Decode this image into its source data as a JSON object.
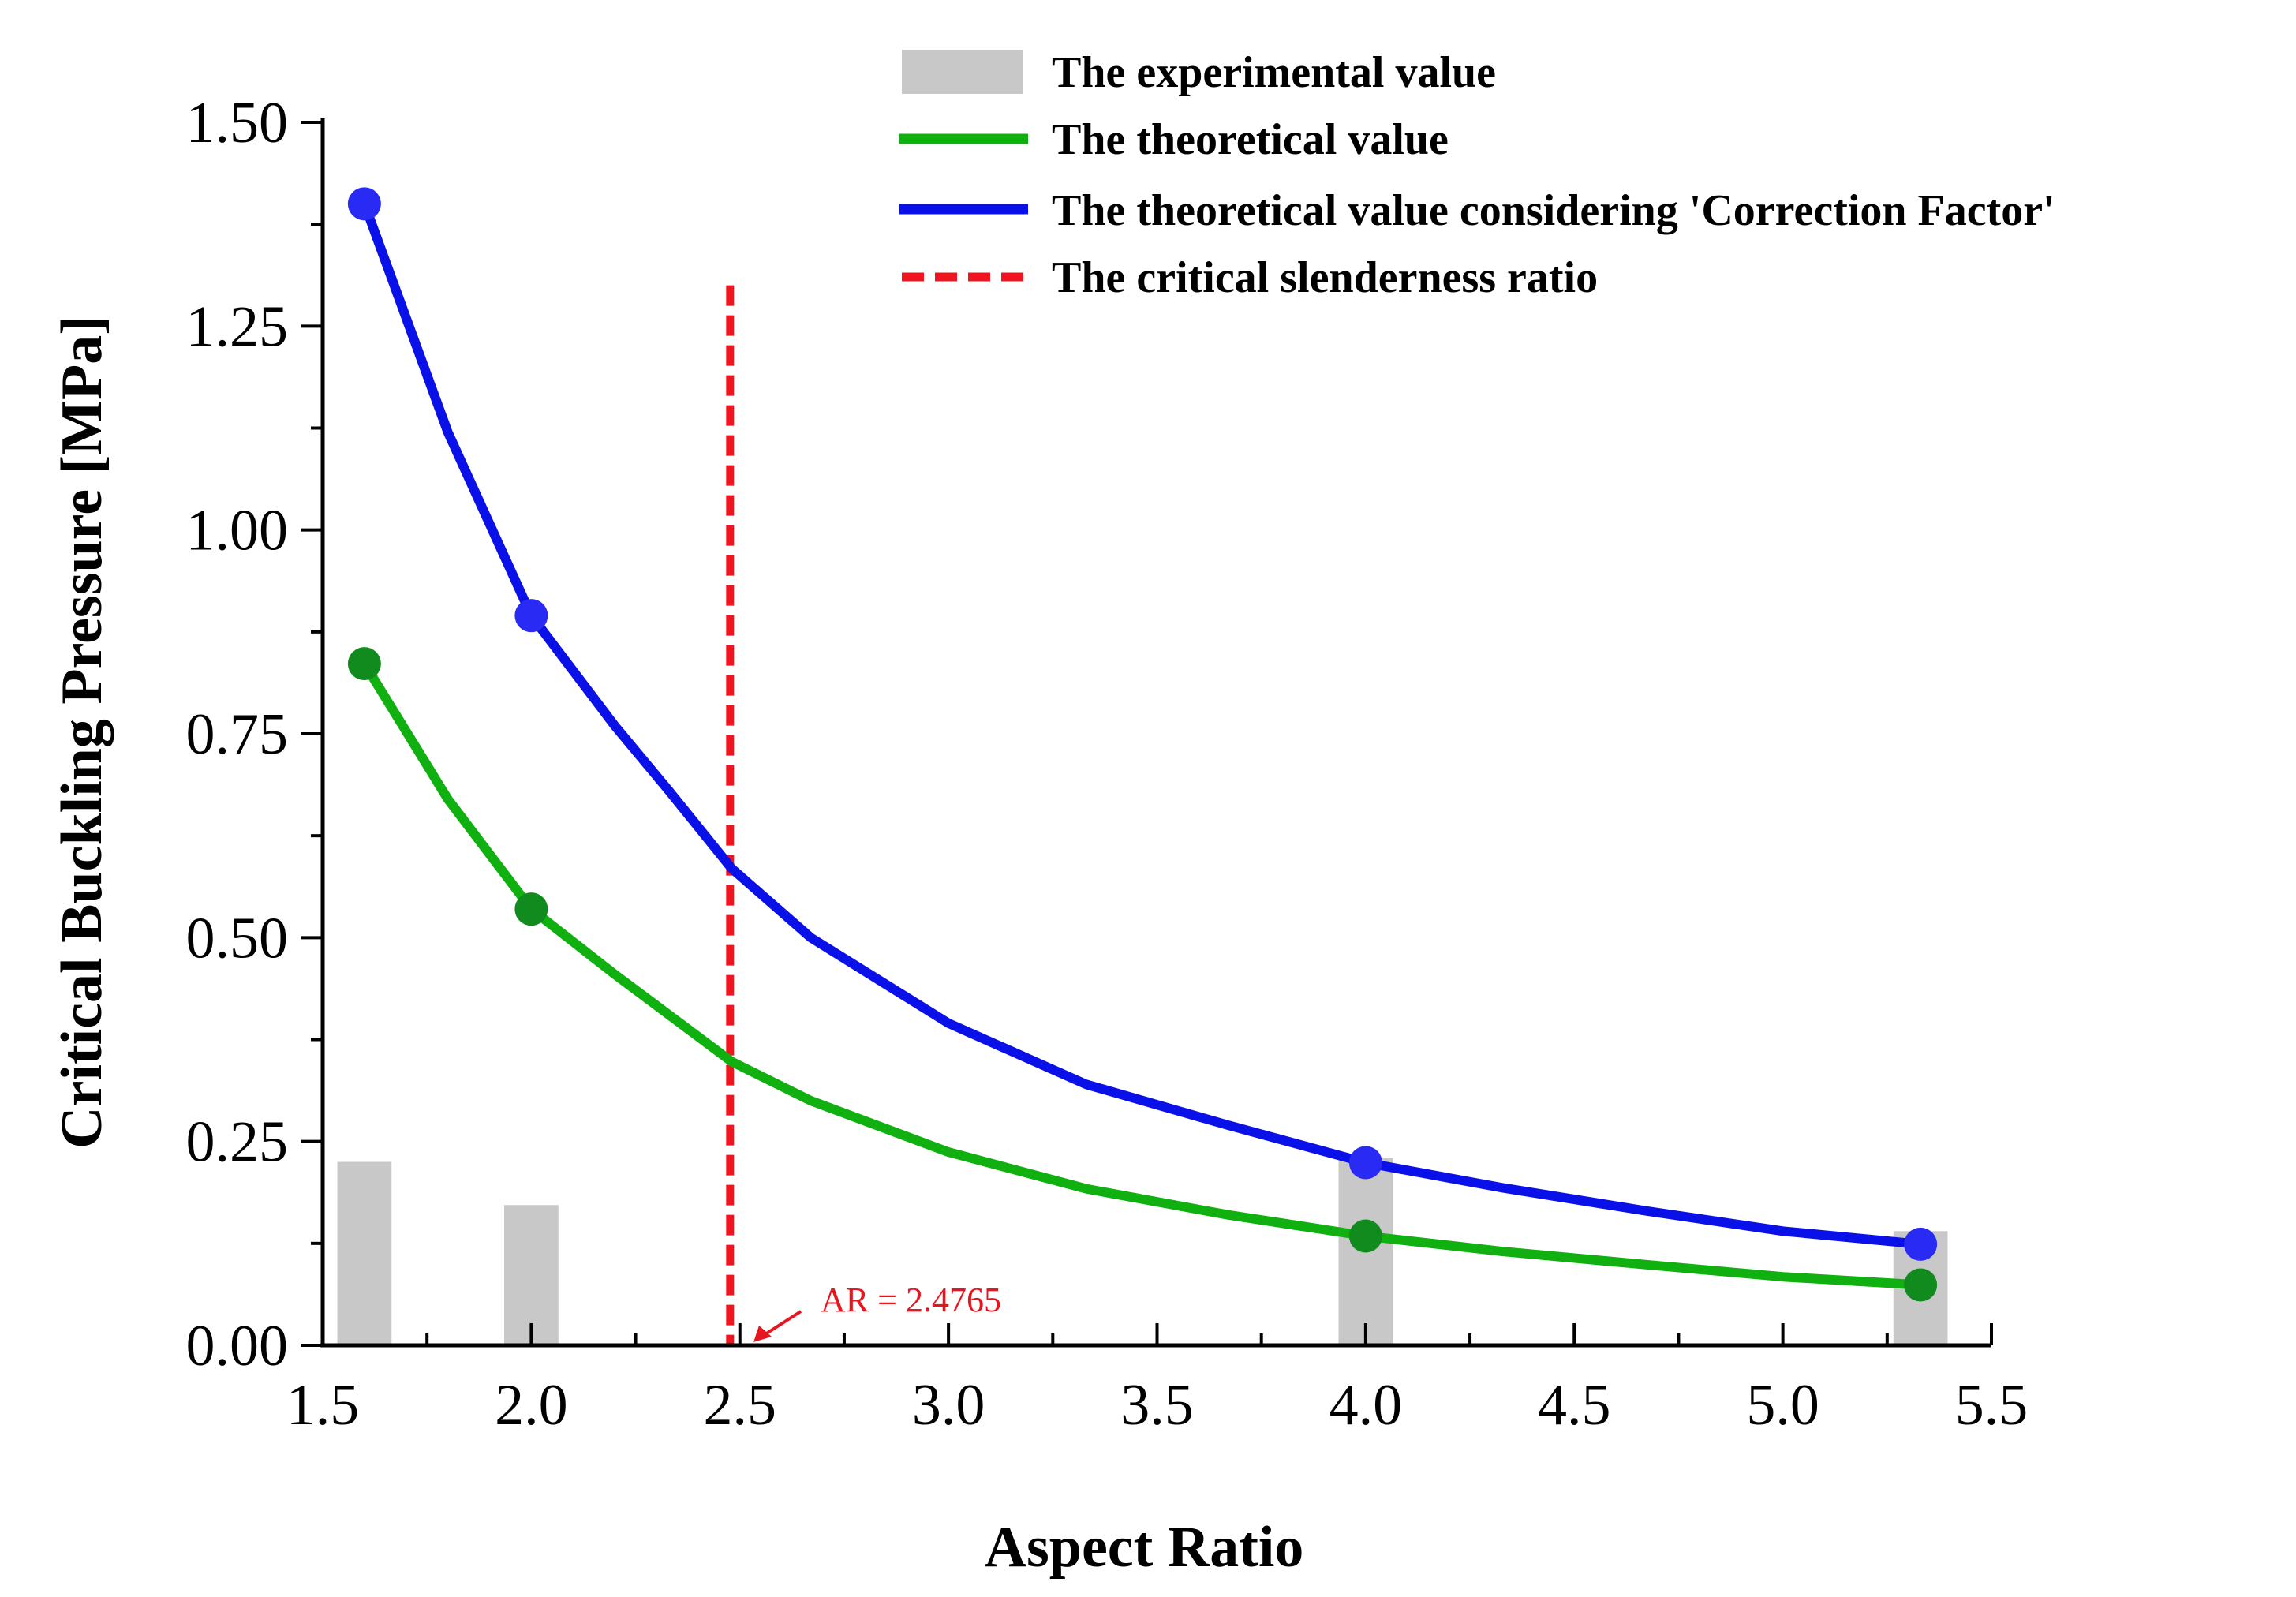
{
  "chart_data": {
    "type": "bar+line",
    "xlabel": "Aspect Ratio",
    "ylabel": "Critical  Buckling  Pressure  [MPa]",
    "xlim": [
      1.5,
      5.5
    ],
    "ylim": [
      0,
      1.5
    ],
    "xticks": [
      "1.5",
      "2.0",
      "2.5",
      "3.0",
      "3.5",
      "4.0",
      "4.5",
      "5.0",
      "5.5"
    ],
    "yticks": [
      "0.00",
      "0.25",
      "0.50",
      "0.75",
      "1.00",
      "1.25",
      "1.50"
    ],
    "legend_position": "top-right",
    "series": [
      {
        "name": "The experimental value",
        "kind": "bar",
        "color": "#c8c8c8",
        "x": [
          1.6,
          2.0,
          4.0,
          5.33
        ],
        "values": [
          0.225,
          0.172,
          0.23,
          0.14
        ]
      },
      {
        "name": "The theoretical value",
        "kind": "line",
        "color": "#10b010",
        "marker_color": "#118a1e",
        "curve": [
          [
            1.6,
            0.836
          ],
          [
            1.8,
            0.67
          ],
          [
            2.0,
            0.535
          ],
          [
            2.2,
            0.455
          ],
          [
            2.48,
            0.348
          ],
          [
            2.67,
            0.3
          ],
          [
            3.0,
            0.237
          ],
          [
            3.33,
            0.192
          ],
          [
            3.67,
            0.16
          ],
          [
            4.0,
            0.134
          ],
          [
            4.33,
            0.115
          ],
          [
            4.67,
            0.099
          ],
          [
            5.0,
            0.084
          ],
          [
            5.33,
            0.074
          ]
        ],
        "markers": [
          [
            1.6,
            0.836
          ],
          [
            2.0,
            0.535
          ],
          [
            4.0,
            0.134
          ],
          [
            5.33,
            0.074
          ]
        ]
      },
      {
        "name": "The theoretical value considering 'Correction Factor'",
        "kind": "line",
        "color": "#0a10e8",
        "marker_color": "#2a2af5",
        "curve": [
          [
            1.6,
            1.4
          ],
          [
            1.8,
            1.12
          ],
          [
            2.0,
            0.895
          ],
          [
            2.2,
            0.76
          ],
          [
            2.33,
            0.68
          ],
          [
            2.48,
            0.585
          ],
          [
            2.67,
            0.5
          ],
          [
            3.0,
            0.395
          ],
          [
            3.33,
            0.32
          ],
          [
            3.67,
            0.27
          ],
          [
            4.0,
            0.224
          ],
          [
            4.33,
            0.193
          ],
          [
            4.67,
            0.165
          ],
          [
            5.0,
            0.14
          ],
          [
            5.33,
            0.124
          ]
        ],
        "markers": [
          [
            1.6,
            1.4
          ],
          [
            2.0,
            0.895
          ],
          [
            4.0,
            0.224
          ],
          [
            5.33,
            0.124
          ]
        ]
      },
      {
        "name": "The critical slenderness ratio",
        "kind": "vline",
        "color": "#f0141e",
        "x": 2.4765,
        "y_top": 1.3
      }
    ],
    "annotation": {
      "text": "AR = 2.4765",
      "x": 2.4765,
      "y": 0
    }
  }
}
